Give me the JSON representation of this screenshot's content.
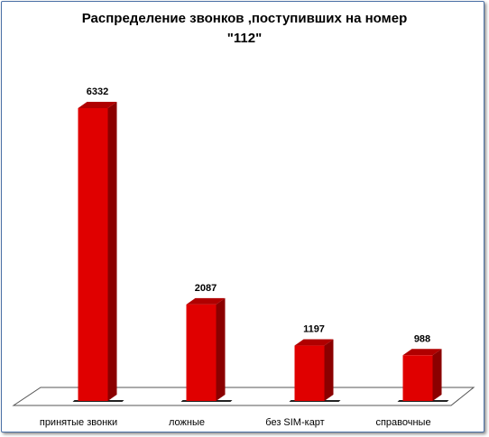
{
  "chart_data": {
    "type": "bar",
    "title_line1": "Распределение  звонков ,поступивших на номер",
    "title_line2": "\"112\"",
    "categories": [
      "принятые звонки",
      "ложные",
      "без SIM-карт",
      "справочные"
    ],
    "values": [
      6332,
      2087,
      1197,
      988
    ],
    "data_labels": [
      "6332",
      "2087",
      "1197",
      "988"
    ],
    "ylim": [
      0,
      6332
    ],
    "grid": false,
    "legend": "none",
    "style": "3d-column"
  },
  "colors": {
    "bar_front": "#e00000",
    "bar_side": "#8b0000",
    "bar_top": "#b00000",
    "frame_border": "#4a6fa5"
  }
}
